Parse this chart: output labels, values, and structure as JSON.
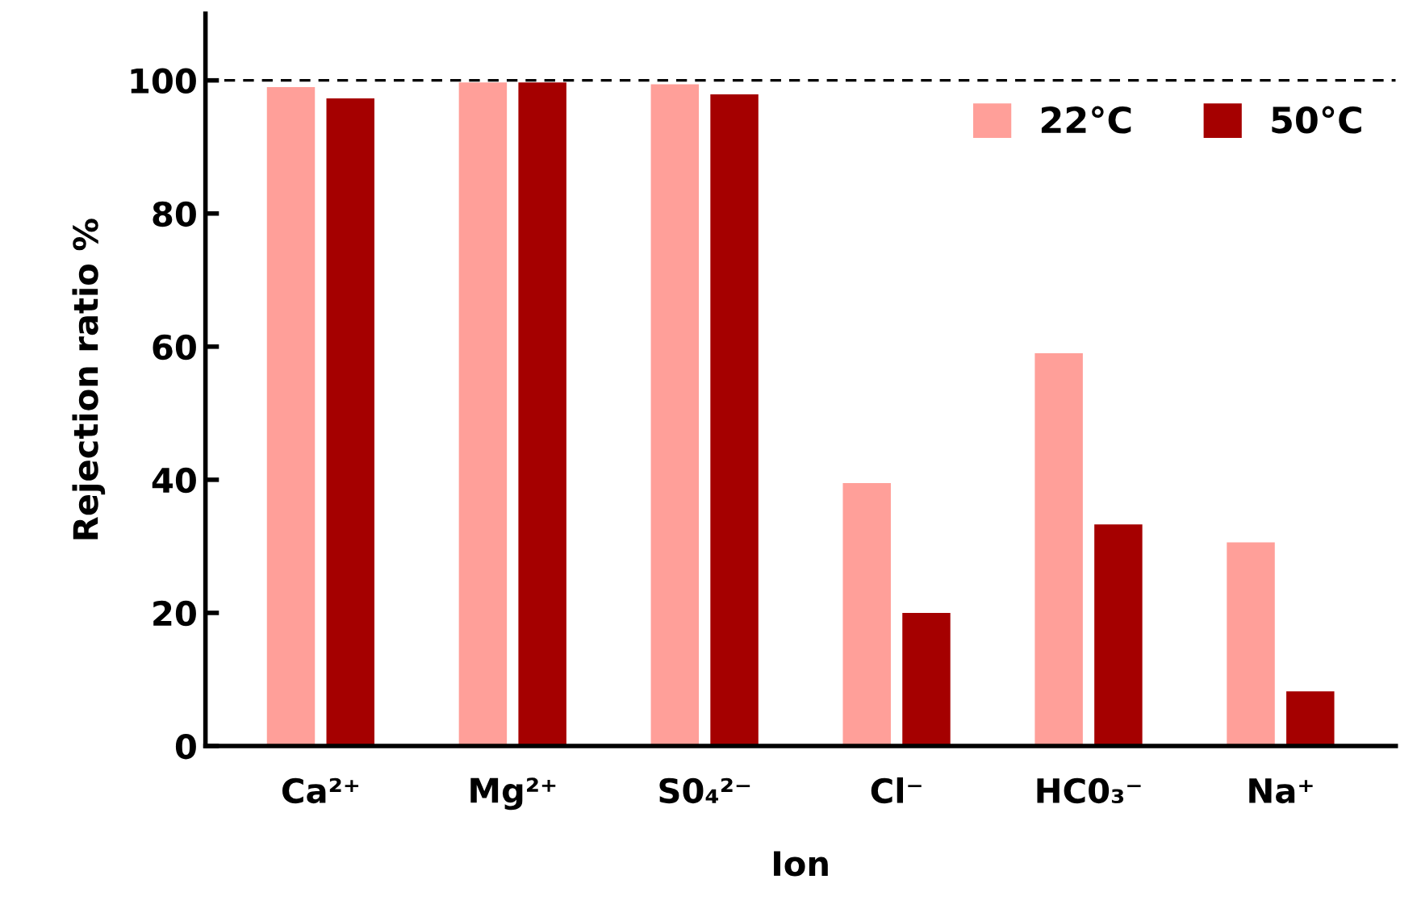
{
  "chart_data": {
    "type": "bar",
    "xlabel": "Ion",
    "ylabel": "Rejection ratio %",
    "categories": [
      "Ca²⁺",
      "Mg²⁺",
      "S0₄²⁻",
      "Cl⁻",
      "HC0₃⁻",
      "Na⁺"
    ],
    "series": [
      {
        "name": "22°C",
        "color": "#ff9f99",
        "values": [
          99.0,
          99.7,
          99.4,
          39.5,
          59.0,
          30.6
        ]
      },
      {
        "name": "50°C",
        "color": "#a50000",
        "values": [
          97.3,
          99.7,
          97.9,
          20.0,
          33.3,
          8.2
        ]
      }
    ],
    "ylim": [
      0,
      110
    ],
    "yticks": [
      0,
      20,
      40,
      60,
      80,
      100
    ],
    "ref_lines": [
      {
        "axis": "y",
        "value": 100,
        "color": "#000000",
        "line_style": "dashed"
      }
    ],
    "legend": "top right",
    "grid": false
  }
}
